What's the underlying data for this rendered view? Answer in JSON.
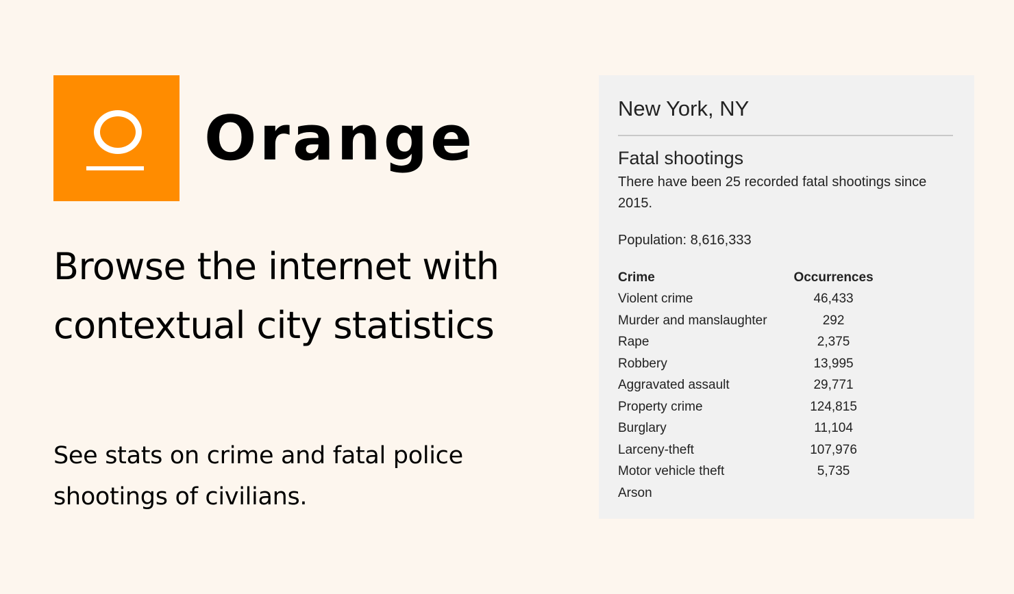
{
  "brand": {
    "name": "Orange",
    "color": "#ff8c00",
    "logo_icon": "orange-o-logo"
  },
  "headline": "Browse the internet with contextual city statistics",
  "subtext": "See stats on crime and fatal police shootings of civilians.",
  "panel": {
    "city": "New York, NY",
    "shootings_heading": "Fatal shootings",
    "shootings_text": "There have been 25 recorded fatal shootings since 2015.",
    "population": "Population: 8,616,333",
    "table": {
      "headers": [
        "Crime",
        "Occurrences"
      ],
      "rows": [
        {
          "crime": "Violent crime",
          "count": "46,433"
        },
        {
          "crime": "Murder and manslaughter",
          "count": "292"
        },
        {
          "crime": "Rape",
          "count": "2,375"
        },
        {
          "crime": "Robbery",
          "count": "13,995"
        },
        {
          "crime": "Aggravated assault",
          "count": "29,771"
        },
        {
          "crime": "Property crime",
          "count": "124,815"
        },
        {
          "crime": "Burglary",
          "count": "11,104"
        },
        {
          "crime": "Larceny-theft",
          "count": "107,976"
        },
        {
          "crime": "Motor vehicle theft",
          "count": "5,735"
        },
        {
          "crime": "Arson",
          "count": ""
        }
      ]
    }
  }
}
